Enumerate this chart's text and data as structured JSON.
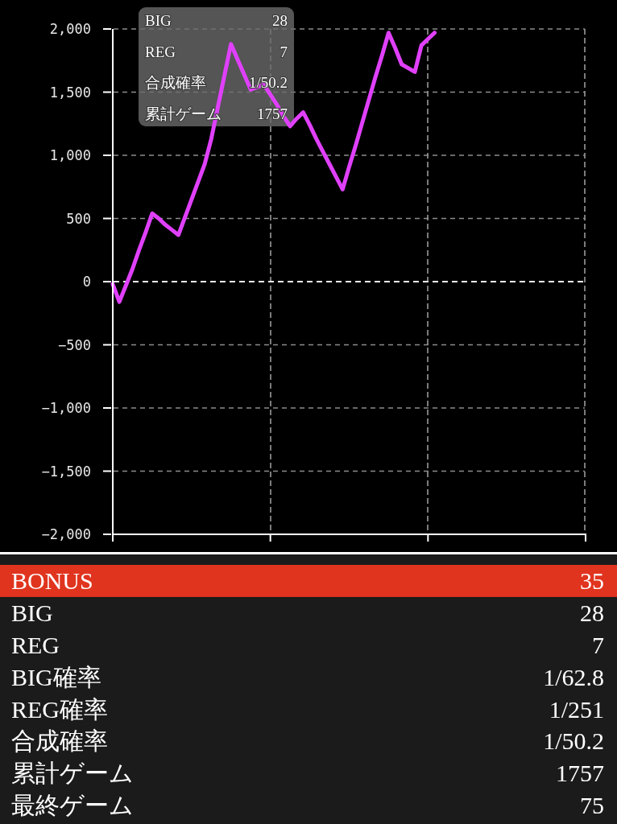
{
  "chart_data": [
    {
      "type": "line",
      "categories": [
        null,
        null,
        null,
        null,
        null,
        null,
        null,
        null,
        null,
        null,
        null,
        null,
        null,
        null,
        null,
        null,
        null,
        null,
        null,
        null,
        null,
        null,
        null,
        null,
        null,
        null,
        null,
        null,
        null,
        null,
        null,
        null,
        null,
        null,
        null,
        null,
        null,
        null,
        null,
        null,
        null,
        null,
        null,
        null,
        null,
        null,
        null,
        null,
        null,
        null,
        null,
        null,
        null,
        null,
        null,
        null,
        null,
        null,
        null,
        null,
        null,
        null,
        null,
        null,
        null,
        null,
        null,
        null,
        null,
        null,
        null,
        null,
        null
      ],
      "values": [
        -20,
        -160,
        -30,
        100,
        250,
        390,
        540,
        500,
        450,
        410,
        370,
        510,
        650,
        790,
        930,
        1130,
        1380,
        1630,
        1880,
        1760,
        1640,
        1520,
        1540,
        1560,
        1480,
        1400,
        1310,
        1230,
        1290,
        1340,
        1240,
        1130,
        1030,
        930,
        830,
        730,
        910,
        1080,
        1260,
        1440,
        1620,
        1790,
        1970,
        1850,
        1720,
        1690,
        1660,
        1870,
        1920,
        1970,
        null,
        null,
        null,
        null,
        null,
        null,
        null,
        null,
        null,
        null,
        null,
        null,
        null,
        null,
        null,
        null,
        null,
        null,
        null,
        null,
        null,
        null,
        null
      ],
      "color": "#e040fb",
      "ylim": [
        -2000,
        2000
      ],
      "yticks": [
        {
          "value": -2000,
          "label": "−2,000"
        },
        {
          "value": -1500,
          "label": "−1,500"
        },
        {
          "value": -1000,
          "label": "−1,000"
        },
        {
          "value": -500,
          "label": "−500"
        },
        0,
        500,
        {
          "value": 1000,
          "label": "1,000"
        },
        {
          "value": 1500,
          "label": "1,500"
        },
        {
          "value": 2000,
          "label": "2,000"
        }
      ],
      "grid": true,
      "ref_lines": [
        {
          "axis": "y",
          "value": 0,
          "color": "#f0f0f0",
          "line_style": "dashed"
        }
      ],
      "annotations": [
        "BIG",
        "28",
        "REG",
        "7",
        "合成確率",
        "1/50.2",
        "累計ゲーム",
        "1757"
      ]
    },
    {
      "type": "other",
      "annotations": [
        "BONUS",
        "35",
        "BIG",
        "28",
        "REG",
        "7",
        "BIG確率",
        "1/62.8",
        "REG確率",
        "1/251",
        "合成確率",
        "1/50.2",
        "累計ゲーム",
        "1757",
        "最終ゲーム",
        "75"
      ]
    }
  ]
}
